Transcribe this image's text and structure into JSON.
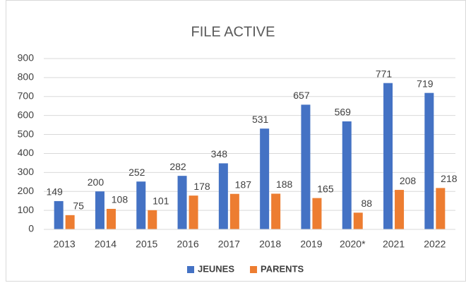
{
  "chart_data": {
    "type": "bar",
    "title": "FILE ACTIVE",
    "categories": [
      "2013",
      "2014",
      "2015",
      "2016",
      "2017",
      "2018",
      "2019",
      "2020*",
      "2021",
      "2022"
    ],
    "series": [
      {
        "name": "JEUNES",
        "color": "#4472c4",
        "values": [
          149,
          200,
          252,
          282,
          348,
          531,
          657,
          569,
          771,
          719
        ]
      },
      {
        "name": "PARENTS",
        "color": "#ed7d31",
        "values": [
          75,
          108,
          101,
          178,
          187,
          188,
          165,
          88,
          208,
          218
        ]
      }
    ],
    "ylim": [
      0,
      900
    ],
    "yticks": [
      0,
      100,
      200,
      300,
      400,
      500,
      600,
      700,
      800,
      900
    ],
    "grid": true,
    "legend": "bottom"
  }
}
